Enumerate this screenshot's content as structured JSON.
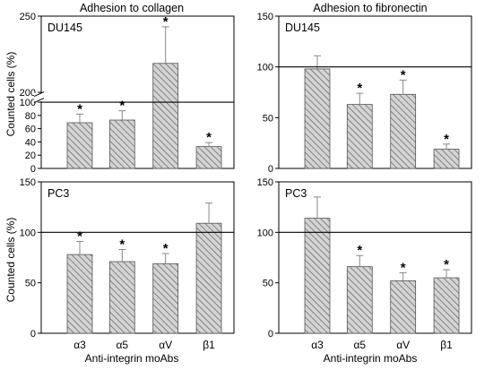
{
  "titles": {
    "left": "Adhesion to collagen",
    "right": "Adhesion to fibronectin"
  },
  "shared": {
    "ylabel": "Counted cells (%)",
    "xlabel": "Anti-integrin moAbs",
    "significance_mark": "*"
  },
  "chart_data": [
    {
      "type": "bar",
      "panel": "DU145",
      "column_title": "Adhesion to collagen",
      "categories": [
        "α3",
        "α5",
        "αV",
        "β1"
      ],
      "values": [
        69,
        73,
        219,
        33
      ],
      "error_plus": [
        13,
        14,
        24,
        6
      ],
      "significant": [
        true,
        true,
        true,
        true
      ],
      "reference_line": 100,
      "ylim": [
        0,
        250
      ],
      "axis_break": {
        "lower": [
          0,
          100
        ],
        "upper": [
          200,
          250
        ]
      },
      "yticks_lower": [
        0,
        20,
        40,
        60,
        80,
        100
      ],
      "yticks_upper": [
        200,
        250
      ],
      "ylabel": "Counted cells (%)"
    },
    {
      "type": "bar",
      "panel": "DU145",
      "column_title": "Adhesion to fibronectin",
      "categories": [
        "α3",
        "α5",
        "αV",
        "β1"
      ],
      "values": [
        98,
        63,
        73,
        19
      ],
      "error_plus": [
        13,
        11,
        14,
        5
      ],
      "significant": [
        false,
        true,
        true,
        true
      ],
      "reference_line": 100,
      "ylim": [
        0,
        150
      ],
      "yticks": [
        0,
        50,
        100,
        150
      ]
    },
    {
      "type": "bar",
      "panel": "PC3",
      "column_title": "Adhesion to collagen",
      "categories": [
        "α3",
        "α5",
        "αV",
        "β1"
      ],
      "values": [
        78,
        71,
        69,
        109
      ],
      "error_plus": [
        13,
        12,
        10,
        20
      ],
      "significant": [
        true,
        true,
        true,
        false
      ],
      "reference_line": 100,
      "ylim": [
        0,
        150
      ],
      "yticks": [
        0,
        50,
        100,
        150
      ],
      "xlabel": "Anti-integrin moAbs",
      "ylabel": "Counted cells (%)"
    },
    {
      "type": "bar",
      "panel": "PC3",
      "column_title": "Adhesion to fibronectin",
      "categories": [
        "α3",
        "α5",
        "αV",
        "β1"
      ],
      "values": [
        114,
        66,
        52,
        55
      ],
      "error_plus": [
        21,
        11,
        8,
        8
      ],
      "significant": [
        false,
        true,
        true,
        true
      ],
      "reference_line": 100,
      "ylim": [
        0,
        150
      ],
      "yticks": [
        0,
        50,
        100,
        150
      ],
      "xlabel": "Anti-integrin moAbs"
    }
  ]
}
